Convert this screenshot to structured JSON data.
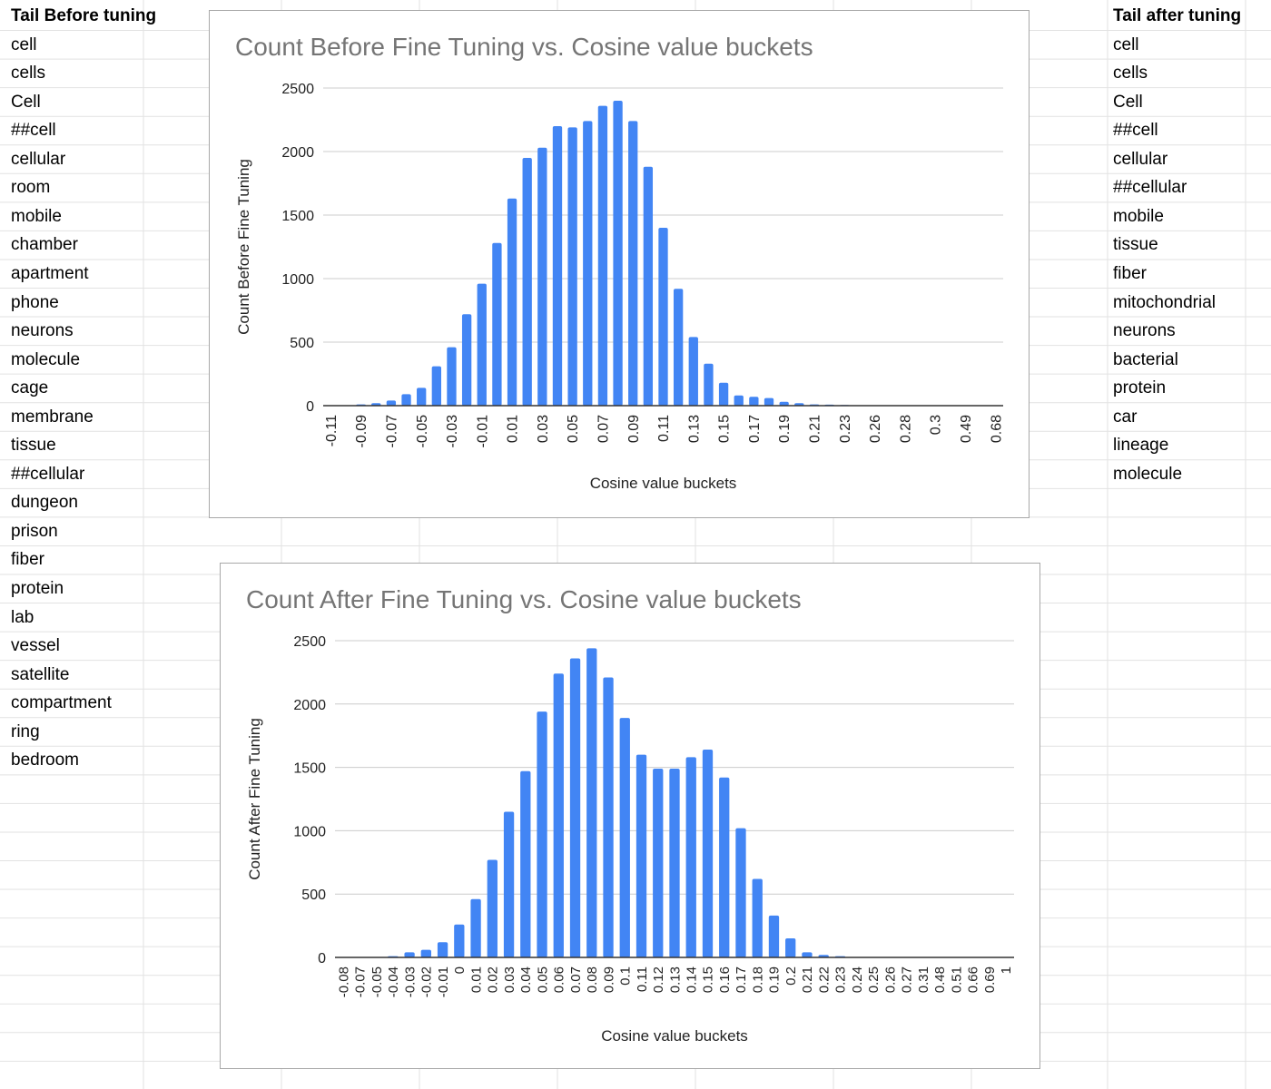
{
  "left_list": {
    "header": "Tail Before tuning",
    "items": [
      "cell",
      "cells",
      "Cell",
      "##cell",
      "cellular",
      "room",
      "mobile",
      "chamber",
      "apartment",
      "phone",
      "neurons",
      "molecule",
      "cage",
      "membrane",
      "tissue",
      "##cellular",
      "dungeon",
      "prison",
      "fiber",
      "protein",
      "lab",
      "vessel",
      "satellite",
      "compartment",
      "ring",
      "bedroom"
    ]
  },
  "right_list": {
    "header": "Tail after tuning",
    "items": [
      "cell",
      "cells",
      "Cell",
      "##cell",
      "cellular",
      "##cellular",
      "mobile",
      "tissue",
      "fiber",
      "mitochondrial",
      "neurons",
      "bacterial",
      "protein",
      "car",
      "lineage",
      "molecule"
    ]
  },
  "colors": {
    "bar": "#4285f4",
    "gridline": "#cccccc",
    "axis": "#333333",
    "title": "#757575"
  },
  "chart_data": [
    {
      "type": "bar",
      "title": "Count Before Fine Tuning vs. Cosine value buckets",
      "xlabel": "Cosine value buckets",
      "ylabel": "Count Before Fine Tuning",
      "ylim": [
        0,
        2500
      ],
      "yticks": [
        0,
        500,
        1000,
        1500,
        2000,
        2500
      ],
      "grid": true,
      "legend": "none",
      "categories": [
        "-0.11",
        "-0.1",
        "-0.09",
        "-0.08",
        "-0.07",
        "-0.06",
        "-0.05",
        "-0.04",
        "-0.03",
        "-0.02",
        "-0.01",
        "0",
        "0.01",
        "0.02",
        "0.03",
        "0.04",
        "0.05",
        "0.06",
        "0.07",
        "0.08",
        "0.09",
        "0.1",
        "0.11",
        "0.12",
        "0.13",
        "0.14",
        "0.15",
        "0.16",
        "0.17",
        "0.18",
        "0.19",
        "0.2",
        "0.21",
        "0.22",
        "0.23",
        "0.24",
        "0.26",
        "0.27",
        "0.28",
        "0.29",
        "0.3",
        "0.31",
        "0.49",
        "0.5",
        "0.68"
      ],
      "tick_labels": [
        "-0.11",
        "-0.09",
        "-0.07",
        "-0.05",
        "-0.03",
        "-0.01",
        "0.01",
        "0.03",
        "0.05",
        "0.07",
        "0.09",
        "0.11",
        "0.13",
        "0.15",
        "0.17",
        "0.19",
        "0.21",
        "0.23",
        "0.26",
        "0.28",
        "0.3",
        "0.49",
        "0.68"
      ],
      "values": [
        0,
        3,
        10,
        20,
        40,
        90,
        140,
        310,
        460,
        720,
        960,
        1280,
        1630,
        1950,
        2030,
        2200,
        2190,
        2240,
        2360,
        2400,
        2240,
        1880,
        1400,
        920,
        540,
        330,
        180,
        80,
        70,
        60,
        30,
        20,
        10,
        8,
        5,
        0,
        0,
        0,
        0,
        0,
        0,
        0,
        0,
        0,
        0
      ]
    },
    {
      "type": "bar",
      "title": "Count After Fine Tuning vs. Cosine value buckets",
      "xlabel": "Cosine value buckets",
      "ylabel": "Count After Fine Tuning",
      "ylim": [
        0,
        2500
      ],
      "yticks": [
        0,
        500,
        1000,
        1500,
        2000,
        2500
      ],
      "grid": true,
      "legend": "none",
      "categories": [
        "-0.08",
        "-0.07",
        "-0.05",
        "-0.04",
        "-0.03",
        "-0.02",
        "-0.01",
        "0",
        "0.01",
        "0.02",
        "0.03",
        "0.04",
        "0.05",
        "0.06",
        "0.07",
        "0.08",
        "0.09",
        "0.1",
        "0.11",
        "0.12",
        "0.13",
        "0.14",
        "0.15",
        "0.16",
        "0.17",
        "0.18",
        "0.19",
        "0.2",
        "0.21",
        "0.22",
        "0.23",
        "0.24",
        "0.25",
        "0.26",
        "0.27",
        "0.31",
        "0.48",
        "0.51",
        "0.66",
        "0.69",
        "1"
      ],
      "tick_labels": [
        "-0.08",
        "-0.07",
        "-0.05",
        "-0.04",
        "-0.03",
        "-0.02",
        "-0.01",
        "0",
        "0.01",
        "0.02",
        "0.03",
        "0.04",
        "0.05",
        "0.06",
        "0.07",
        "0.08",
        "0.09",
        "0.1",
        "0.11",
        "0.12",
        "0.13",
        "0.14",
        "0.15",
        "0.16",
        "0.17",
        "0.18",
        "0.19",
        "0.2",
        "0.21",
        "0.22",
        "0.23",
        "0.24",
        "0.25",
        "0.26",
        "0.27",
        "0.31",
        "0.48",
        "0.51",
        "0.66",
        "0.69",
        "1"
      ],
      "values": [
        0,
        0,
        0,
        10,
        40,
        60,
        120,
        260,
        460,
        770,
        1150,
        1470,
        1940,
        2240,
        2360,
        2440,
        2210,
        1890,
        1600,
        1490,
        1490,
        1580,
        1640,
        1420,
        1020,
        620,
        330,
        150,
        40,
        20,
        10,
        0,
        0,
        0,
        0,
        0,
        0,
        0,
        0,
        0,
        0
      ]
    }
  ]
}
